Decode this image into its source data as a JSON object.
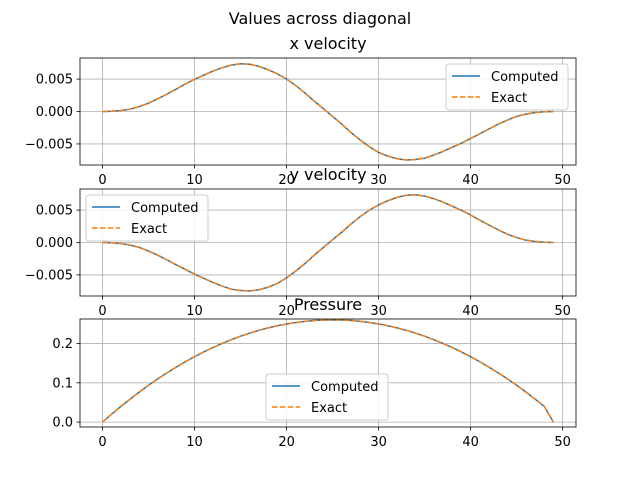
{
  "figure": {
    "suptitle": "Values across diagonal"
  },
  "colors": {
    "computed": "#1f77b4",
    "exact": "#ff7f0e",
    "grid": "#b0b0b0",
    "axes": "#000000",
    "legend_border": "#cccccc"
  },
  "chart_data": [
    {
      "type": "line",
      "title": "x velocity",
      "xlim": [
        -2.45,
        51.45
      ],
      "ylim": [
        -0.00825,
        0.00825
      ],
      "xticks": [
        0,
        10,
        20,
        30,
        40,
        50
      ],
      "yticks": [
        -0.005,
        0.0,
        0.005
      ],
      "ytick_labels": [
        "−0.005",
        "0.000",
        "0.005"
      ],
      "grid": true,
      "legend_position": "upper right",
      "x": [
        0,
        1,
        2,
        3,
        4,
        5,
        6,
        7,
        8,
        9,
        10,
        11,
        12,
        13,
        14,
        15,
        16,
        17,
        18,
        19,
        20,
        21,
        22,
        23,
        24,
        25,
        26,
        27,
        28,
        29,
        30,
        31,
        32,
        33,
        34,
        35,
        36,
        37,
        38,
        39,
        40,
        41,
        42,
        43,
        44,
        45,
        46,
        47,
        48,
        49
      ],
      "series": [
        {
          "name": "Computed",
          "style": "solid",
          "values": [
            0.0,
            4e-05,
            0.00016,
            0.00036,
            0.00076,
            0.00128,
            0.00196,
            0.00268,
            0.00344,
            0.00424,
            0.00496,
            0.0056,
            0.00624,
            0.00676,
            0.00716,
            0.00736,
            0.00728,
            0.00696,
            0.00644,
            0.0058,
            0.005,
            0.004,
            0.00284,
            0.0016,
            0.00044,
            -0.00076,
            -0.00196,
            -0.00324,
            -0.0044,
            -0.00544,
            -0.00632,
            -0.00688,
            -0.00728,
            -0.00748,
            -0.0074,
            -0.0072,
            -0.00672,
            -0.00616,
            -0.00552,
            -0.00488,
            -0.00416,
            -0.00344,
            -0.00268,
            -0.00196,
            -0.00132,
            -0.00076,
            -0.0004,
            -0.00016,
            -4e-05,
            0.0
          ]
        },
        {
          "name": "Exact",
          "style": "dashed",
          "values": [
            0.0,
            4e-05,
            0.00016,
            0.00036,
            0.00076,
            0.00128,
            0.00196,
            0.00268,
            0.00344,
            0.00424,
            0.00496,
            0.0056,
            0.00624,
            0.00676,
            0.00716,
            0.00736,
            0.00728,
            0.00696,
            0.00644,
            0.0058,
            0.005,
            0.004,
            0.00284,
            0.0016,
            0.00044,
            -0.00076,
            -0.00196,
            -0.00324,
            -0.0044,
            -0.00544,
            -0.00632,
            -0.00688,
            -0.00728,
            -0.00748,
            -0.0074,
            -0.0072,
            -0.00672,
            -0.00616,
            -0.00552,
            -0.00488,
            -0.00416,
            -0.00344,
            -0.00268,
            -0.00196,
            -0.00132,
            -0.00076,
            -0.0004,
            -0.00016,
            -4e-05,
            0.0
          ]
        }
      ]
    },
    {
      "type": "line",
      "title": "y velocity",
      "xlim": [
        -2.45,
        51.45
      ],
      "ylim": [
        -0.00825,
        0.00825
      ],
      "xticks": [
        0,
        10,
        20,
        30,
        40,
        50
      ],
      "yticks": [
        -0.005,
        0.0,
        0.005
      ],
      "ytick_labels": [
        "−0.005",
        "0.000",
        "0.005"
      ],
      "grid": true,
      "legend_position": "upper left",
      "x": [
        0,
        1,
        2,
        3,
        4,
        5,
        6,
        7,
        8,
        9,
        10,
        11,
        12,
        13,
        14,
        15,
        16,
        17,
        18,
        19,
        20,
        21,
        22,
        23,
        24,
        25,
        26,
        27,
        28,
        29,
        30,
        31,
        32,
        33,
        34,
        35,
        36,
        37,
        38,
        39,
        40,
        41,
        42,
        43,
        44,
        45,
        46,
        47,
        48,
        49
      ],
      "series": [
        {
          "name": "Computed",
          "style": "solid",
          "values": [
            0.0,
            -4e-05,
            -0.00016,
            -0.0004,
            -0.00076,
            -0.00132,
            -0.00196,
            -0.00268,
            -0.00344,
            -0.00416,
            -0.00488,
            -0.00552,
            -0.00616,
            -0.00672,
            -0.0072,
            -0.0074,
            -0.00748,
            -0.00728,
            -0.00688,
            -0.00632,
            -0.00544,
            -0.0044,
            -0.00324,
            -0.00196,
            -0.00076,
            0.00044,
            0.0016,
            0.00284,
            0.004,
            0.005,
            0.0058,
            0.00644,
            0.00696,
            0.00728,
            0.00736,
            0.00716,
            0.00676,
            0.00624,
            0.0056,
            0.00496,
            0.00424,
            0.00344,
            0.00268,
            0.00196,
            0.00128,
            0.00076,
            0.00036,
            0.00016,
            4e-05,
            0.0
          ]
        },
        {
          "name": "Exact",
          "style": "dashed",
          "values": [
            0.0,
            -4e-05,
            -0.00016,
            -0.0004,
            -0.00076,
            -0.00132,
            -0.00196,
            -0.00268,
            -0.00344,
            -0.00416,
            -0.00488,
            -0.00552,
            -0.00616,
            -0.00672,
            -0.0072,
            -0.0074,
            -0.00748,
            -0.00728,
            -0.00688,
            -0.00632,
            -0.00544,
            -0.0044,
            -0.00324,
            -0.00196,
            -0.00076,
            0.00044,
            0.0016,
            0.00284,
            0.004,
            0.005,
            0.0058,
            0.00644,
            0.00696,
            0.00728,
            0.00736,
            0.00716,
            0.00676,
            0.00624,
            0.0056,
            0.00496,
            0.00424,
            0.00344,
            0.00268,
            0.00196,
            0.00128,
            0.00076,
            0.00036,
            0.00016,
            4e-05,
            0.0
          ]
        }
      ]
    },
    {
      "type": "line",
      "title": "Pressure",
      "xlim": [
        -2.45,
        51.45
      ],
      "ylim": [
        -0.0125,
        0.2625
      ],
      "xticks": [
        0,
        10,
        20,
        30,
        40,
        50
      ],
      "yticks": [
        0.0,
        0.1,
        0.2
      ],
      "ytick_labels": [
        "0.0",
        "0.1",
        "0.2"
      ],
      "grid": true,
      "legend_position": "lower center",
      "x": [
        0,
        1,
        2,
        3,
        4,
        5,
        6,
        7,
        8,
        9,
        10,
        11,
        12,
        13,
        14,
        15,
        16,
        17,
        18,
        19,
        20,
        21,
        22,
        23,
        24,
        25,
        26,
        27,
        28,
        29,
        30,
        31,
        32,
        33,
        34,
        35,
        36,
        37,
        38,
        39,
        40,
        41,
        42,
        43,
        44,
        45,
        46,
        47,
        48,
        49
      ],
      "series": [
        {
          "name": "Computed",
          "style": "solid",
          "values": [
            0.0,
            0.0204,
            0.04,
            0.0587,
            0.0767,
            0.0937,
            0.11,
            0.1254,
            0.1399,
            0.1537,
            0.1666,
            0.1787,
            0.1899,
            0.2003,
            0.2099,
            0.2187,
            0.2266,
            0.2337,
            0.2399,
            0.2453,
            0.2499,
            0.2537,
            0.2566,
            0.2587,
            0.2599,
            0.2603,
            0.2599,
            0.2587,
            0.2566,
            0.2537,
            0.2499,
            0.2453,
            0.2399,
            0.2337,
            0.2266,
            0.2187,
            0.2099,
            0.2003,
            0.1899,
            0.1787,
            0.1666,
            0.1537,
            0.1399,
            0.1254,
            0.11,
            0.0937,
            0.0767,
            0.0587,
            0.04,
            0.0
          ]
        },
        {
          "name": "Exact",
          "style": "dashed",
          "values": [
            0.0,
            0.0204,
            0.04,
            0.0587,
            0.0767,
            0.0937,
            0.11,
            0.1254,
            0.1399,
            0.1537,
            0.1666,
            0.1787,
            0.1899,
            0.2003,
            0.2099,
            0.2187,
            0.2266,
            0.2337,
            0.2399,
            0.2453,
            0.2499,
            0.2537,
            0.2566,
            0.2587,
            0.2599,
            0.2603,
            0.2599,
            0.2587,
            0.2566,
            0.2537,
            0.2499,
            0.2453,
            0.2399,
            0.2337,
            0.2266,
            0.2187,
            0.2099,
            0.2003,
            0.1899,
            0.1787,
            0.1666,
            0.1537,
            0.1399,
            0.1254,
            0.11,
            0.0937,
            0.0767,
            0.0587,
            0.04,
            0.0
          ]
        }
      ]
    }
  ]
}
